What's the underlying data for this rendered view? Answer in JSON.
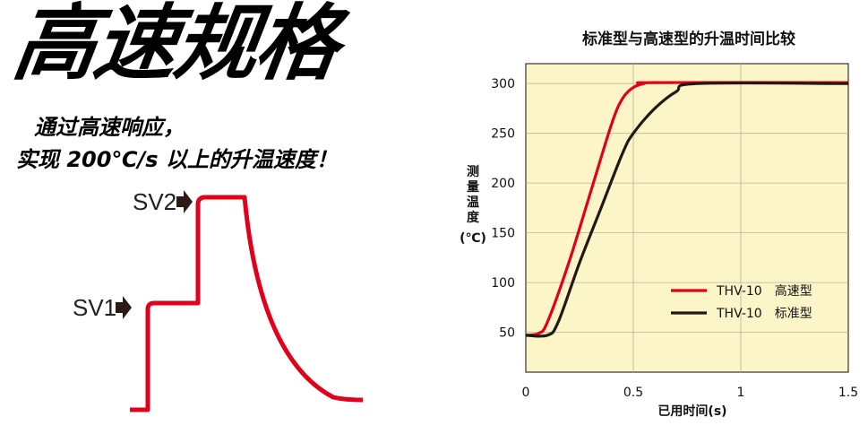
{
  "headline": "高速规格",
  "tagline": {
    "line1": "通过高速响应，",
    "line2": "实现 200℃/s 以上的升温速度！"
  },
  "diagram": {
    "sv1_label": "SV1",
    "sv2_label": "SV2",
    "line_color": "#e0001b",
    "arrow_icon": "arrow-right-icon"
  },
  "chart_data": {
    "type": "line",
    "title": "标准型与高速型的升温时间比较",
    "xlabel": "已用时间(s)",
    "ylabel_lines": [
      "测",
      "量",
      "温",
      "度",
      "(℃)"
    ],
    "xlim": [
      0,
      1.5
    ],
    "ylim": [
      10,
      320
    ],
    "x_ticks": [
      0,
      0.5,
      1,
      1.5
    ],
    "x_tick_labels": [
      "0",
      "0.5",
      "1",
      "1.5"
    ],
    "y_ticks": [
      50,
      100,
      150,
      200,
      250,
      300
    ],
    "y_tick_labels": [
      "50",
      "100",
      "150",
      "200",
      "250",
      "300"
    ],
    "x_grid": [
      0.5,
      1.0
    ],
    "grid": true,
    "background": "#fcf5c8",
    "legend_position": "lower-right",
    "series": [
      {
        "name": "THV-10　高速型",
        "color": "#e0001b",
        "points": [
          [
            0,
            47
          ],
          [
            0.06,
            49
          ],
          [
            0.1,
            60
          ],
          [
            0.2,
            120
          ],
          [
            0.3,
            190
          ],
          [
            0.4,
            260
          ],
          [
            0.45,
            285
          ],
          [
            0.5,
            296
          ],
          [
            0.55,
            300
          ],
          [
            0.6,
            301
          ],
          [
            1.5,
            301
          ]
        ]
      },
      {
        "name": "THV-10　标准型",
        "color": "#231815",
        "points": [
          [
            0,
            47
          ],
          [
            0.1,
            47
          ],
          [
            0.15,
            60
          ],
          [
            0.25,
            120
          ],
          [
            0.35,
            175
          ],
          [
            0.45,
            230
          ],
          [
            0.5,
            250
          ],
          [
            0.6,
            275
          ],
          [
            0.7,
            292
          ],
          [
            0.8,
            300
          ],
          [
            1.5,
            300
          ]
        ]
      }
    ]
  }
}
